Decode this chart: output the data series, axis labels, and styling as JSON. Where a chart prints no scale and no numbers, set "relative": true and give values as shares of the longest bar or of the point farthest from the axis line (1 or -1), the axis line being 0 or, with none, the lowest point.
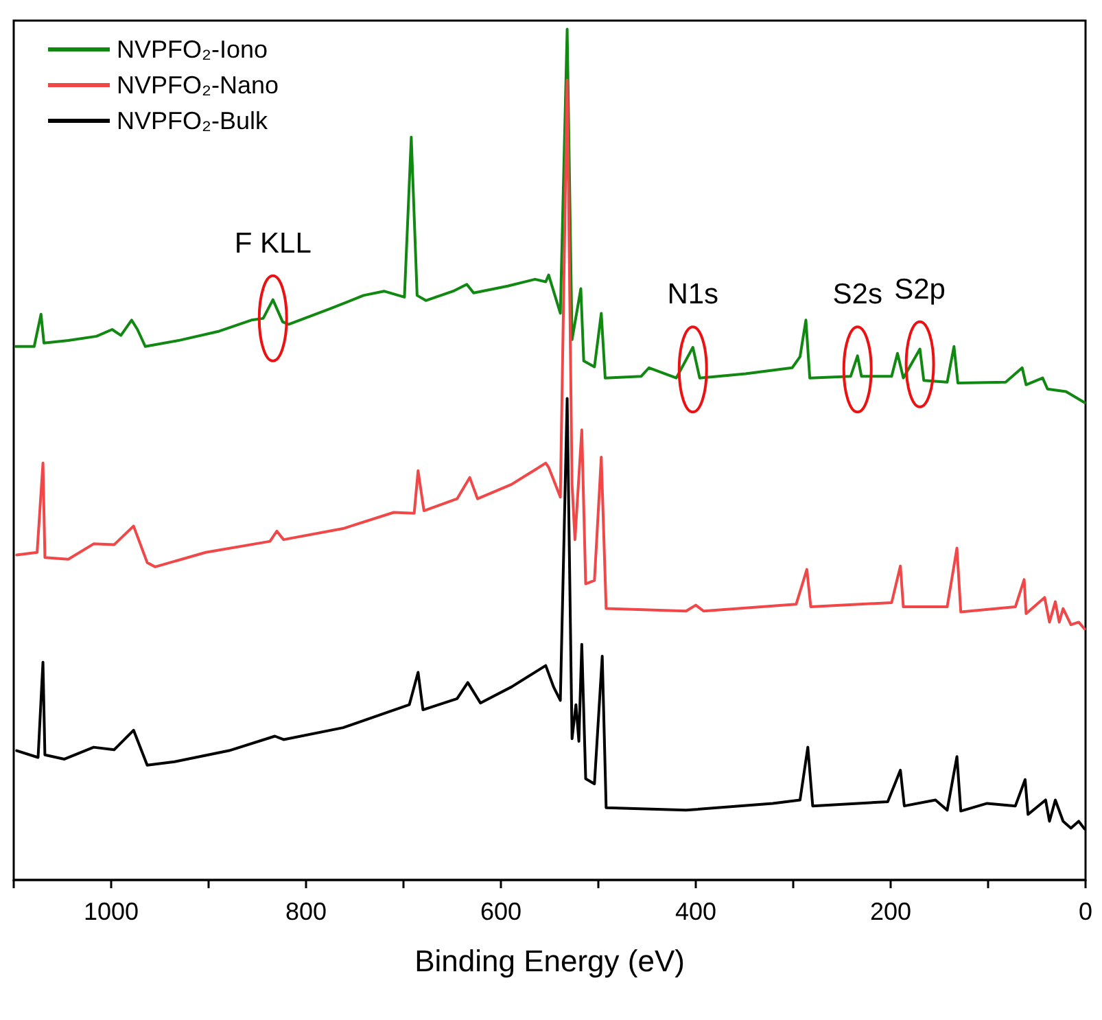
{
  "chart_data": {
    "type": "line",
    "relative": true,
    "xlabel": "Binding Energy (eV)",
    "xlim": [
      1100,
      0
    ],
    "xticks": [
      {
        "value": 1100,
        "label": null
      },
      1000,
      {
        "value": 900,
        "label": null
      },
      800,
      {
        "value": 700,
        "label": null
      },
      600,
      {
        "value": 500,
        "label": null
      },
      400,
      {
        "value": 300,
        "label": null
      },
      200,
      {
        "value": 100,
        "label": null
      },
      0
    ],
    "legend": "top left",
    "grid": false,
    "annotations": [
      {
        "text": "F KLL",
        "x": 834,
        "y": 0.66
      },
      {
        "text": "N1s",
        "x": 403,
        "y": 0.6
      },
      {
        "text": "S2s",
        "x": 234,
        "y": 0.6
      },
      {
        "text": "S2p",
        "x": 170,
        "y": 0.606
      }
    ],
    "series": [
      {
        "name": "NVPFO₂-Iono",
        "color": "#118811",
        "x": [
          1098,
          1079,
          1072,
          1069,
          1044,
          1015,
          999,
          990,
          979,
          973,
          965,
          931,
          889,
          856,
          844,
          834,
          824,
          818,
          776,
          741,
          720,
          699,
          692,
          686,
          677,
          649,
          635,
          628,
          593,
          565,
          554,
          551,
          539,
          532,
          527,
          518,
          515,
          504,
          497,
          493,
          456,
          448,
          420,
          403,
          396,
          349,
          301,
          293,
          287,
          283,
          241,
          234,
          230,
          199,
          193,
          187,
          170,
          166,
          142,
          135,
          131,
          82,
          65,
          61,
          44,
          39,
          20,
          1
        ],
        "values": [
          0.627,
          0.627,
          0.665,
          0.631,
          0.634,
          0.639,
          0.647,
          0.64,
          0.658,
          0.647,
          0.627,
          0.634,
          0.645,
          0.658,
          0.66,
          0.682,
          0.656,
          0.653,
          0.671,
          0.687,
          0.692,
          0.685,
          0.873,
          0.687,
          0.681,
          0.692,
          0.7,
          0.69,
          0.698,
          0.706,
          0.703,
          0.711,
          0.666,
          1.0,
          0.635,
          0.695,
          0.61,
          0.603,
          0.666,
          0.59,
          0.592,
          0.602,
          0.59,
          0.626,
          0.59,
          0.595,
          0.602,
          0.615,
          0.658,
          0.59,
          0.592,
          0.616,
          0.592,
          0.592,
          0.619,
          0.59,
          0.624,
          0.587,
          0.585,
          0.627,
          0.584,
          0.585,
          0.602,
          0.582,
          0.59,
          0.577,
          0.574,
          0.561
        ]
      },
      {
        "name": "NVPFO₂-Nano",
        "color": "#f04848",
        "x": [
          1097,
          1076,
          1070,
          1068,
          1044,
          1018,
          997,
          977,
          963,
          955,
          903,
          837,
          830,
          823,
          762,
          710,
          689,
          685,
          679,
          645,
          632,
          624,
          589,
          565,
          554,
          551,
          539,
          532,
          527,
          524,
          517,
          513,
          504,
          497,
          492,
          410,
          400,
          392,
          297,
          286,
          282,
          199,
          190,
          187,
          142,
          132,
          128,
          72,
          63,
          61,
          42,
          37,
          31,
          27,
          23,
          15,
          7,
          1
        ],
        "values": [
          0.382,
          0.385,
          0.49,
          0.379,
          0.377,
          0.395,
          0.394,
          0.416,
          0.373,
          0.368,
          0.385,
          0.398,
          0.41,
          0.4,
          0.413,
          0.432,
          0.431,
          0.481,
          0.434,
          0.448,
          0.473,
          0.448,
          0.465,
          0.482,
          0.49,
          0.485,
          0.45,
          0.94,
          0.465,
          0.4,
          0.529,
          0.348,
          0.352,
          0.497,
          0.319,
          0.316,
          0.323,
          0.316,
          0.324,
          0.365,
          0.321,
          0.326,
          0.369,
          0.321,
          0.321,
          0.39,
          0.315,
          0.321,
          0.353,
          0.313,
          0.332,
          0.303,
          0.327,
          0.303,
          0.319,
          0.3,
          0.303,
          0.295
        ]
      },
      {
        "name": "NVPFO₂-Bulk",
        "color": "#000000",
        "x": [
          1097,
          1075,
          1070,
          1068,
          1048,
          1018,
          997,
          977,
          963,
          935,
          879,
          832,
          823,
          762,
          694,
          685,
          680,
          645,
          634,
          621,
          589,
          554,
          546,
          539,
          532,
          527,
          523,
          520,
          517,
          513,
          504,
          496,
          492,
          410,
          321,
          293,
          285,
          280,
          203,
          190,
          186,
          154,
          142,
          132,
          128,
          101,
          72,
          62,
          59,
          41,
          37,
          31,
          23,
          15,
          7,
          1
        ],
        "values": [
          0.152,
          0.144,
          0.256,
          0.147,
          0.142,
          0.156,
          0.153,
          0.176,
          0.135,
          0.139,
          0.152,
          0.169,
          0.165,
          0.179,
          0.206,
          0.244,
          0.2,
          0.213,
          0.232,
          0.208,
          0.227,
          0.252,
          0.227,
          0.211,
          0.566,
          0.166,
          0.206,
          0.163,
          0.277,
          0.119,
          0.113,
          0.263,
          0.085,
          0.082,
          0.09,
          0.094,
          0.156,
          0.087,
          0.092,
          0.129,
          0.087,
          0.094,
          0.082,
          0.145,
          0.081,
          0.09,
          0.087,
          0.118,
          0.077,
          0.094,
          0.069,
          0.094,
          0.069,
          0.061,
          0.069,
          0.06
        ]
      }
    ]
  }
}
